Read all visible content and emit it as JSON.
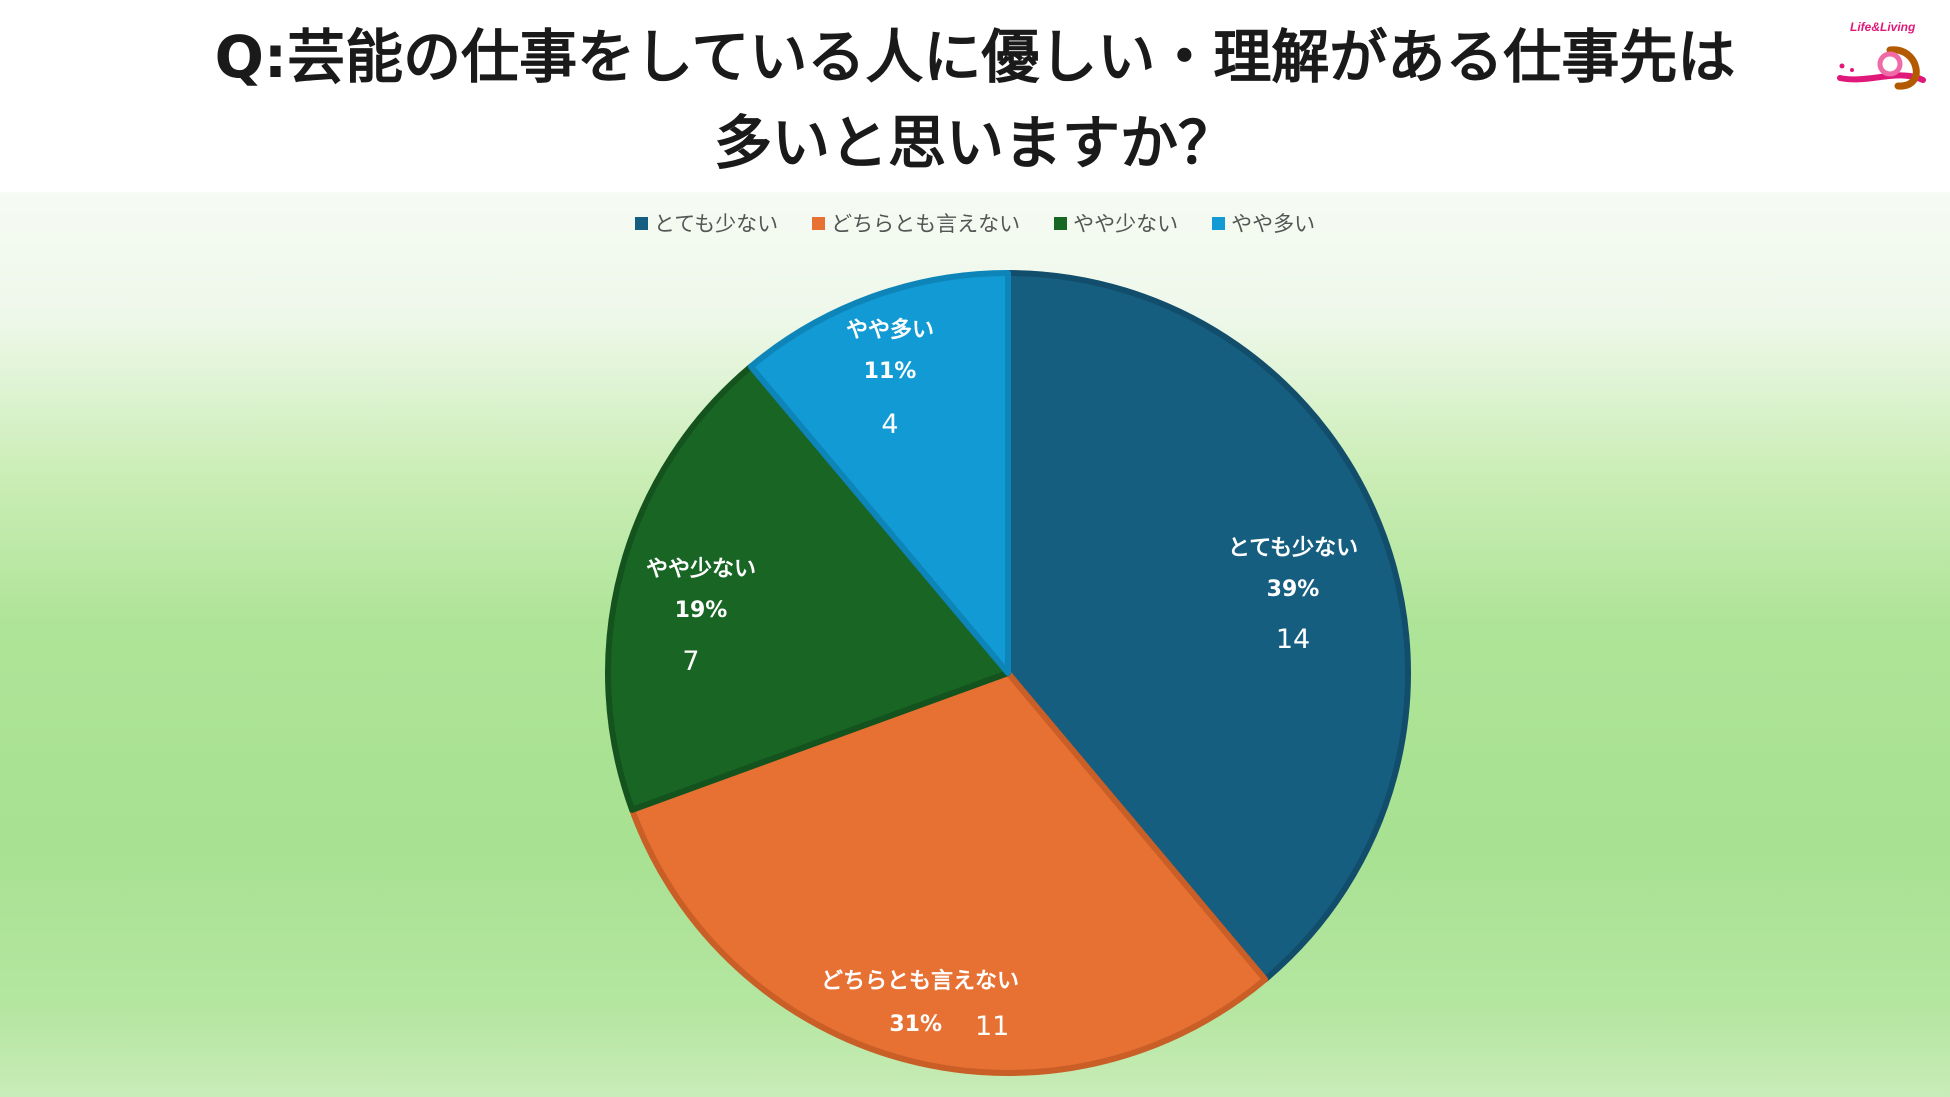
{
  "title_line1": "Q:芸能の仕事をしている人に優しい・理解がある仕事先は",
  "title_line2": "多いと思いますか？",
  "logo_text": "Life&Living",
  "chart_data": {
    "type": "pie",
    "title": "Q:芸能の仕事をしている人に優しい・理解がある仕事先は多いと思いますか？",
    "legend_position": "top",
    "slices": [
      {
        "label": "とても少ない",
        "value": 14,
        "percent": "39%",
        "color": "#165e80",
        "stroke": "#124e6b"
      },
      {
        "label": "どちらとも言えない",
        "value": 11,
        "percent": "31%",
        "color": "#e77033",
        "stroke": "#c95e27"
      },
      {
        "label": "やや少ない",
        "value": 7,
        "percent": "19%",
        "color": "#196524",
        "stroke": "#14531d"
      },
      {
        "label": "やや多い",
        "value": 4,
        "percent": "11%",
        "color": "#119ad3",
        "stroke": "#0e85b8"
      }
    ]
  }
}
